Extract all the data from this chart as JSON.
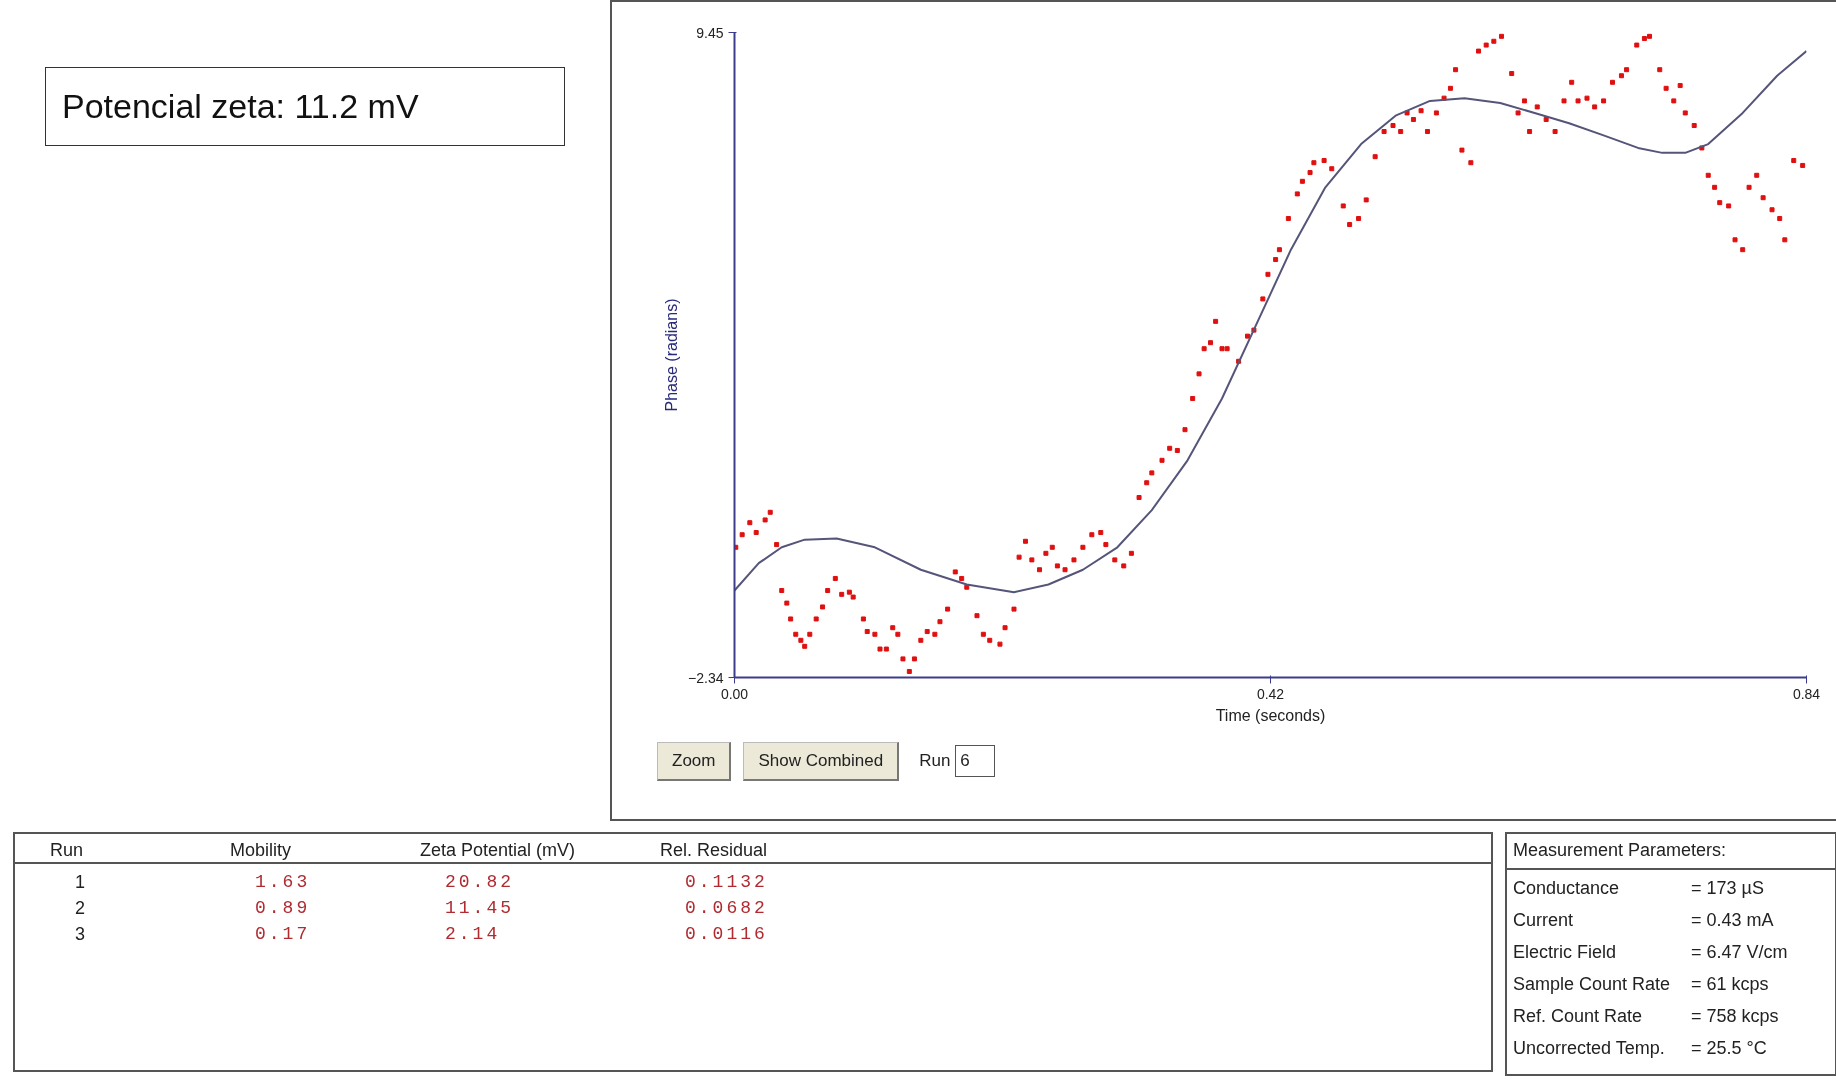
{
  "chart_data": {
    "type": "scatter",
    "xlabel": "Time (seconds)",
    "ylabel": "Phase (radians)",
    "xlim": [
      0,
      0.84
    ],
    "ylim": [
      -2.34,
      9.45
    ],
    "xticks": [
      {
        "value": 0,
        "label": "0.00"
      },
      0.42,
      0.84
    ],
    "yticks": [
      -2.34,
      9.45
    ],
    "grid": false,
    "series": [
      {
        "marker": "square",
        "color": "#e01010",
        "x": [
          0.001,
          0.006,
          0.012,
          0.017,
          0.024,
          0.028,
          0.033,
          0.037,
          0.041,
          0.044,
          0.048,
          0.052,
          0.055,
          0.059,
          0.064,
          0.069,
          0.073,
          0.079,
          0.084,
          0.09,
          0.093,
          0.101,
          0.104,
          0.11,
          0.114,
          0.119,
          0.124,
          0.128,
          0.132,
          0.137,
          0.141,
          0.146,
          0.151,
          0.157,
          0.161,
          0.167,
          0.173,
          0.178,
          0.182,
          0.19,
          0.195,
          0.2,
          0.208,
          0.212,
          0.219,
          0.223,
          0.228,
          0.233,
          0.239,
          0.244,
          0.249,
          0.253,
          0.259,
          0.266,
          0.273,
          0.28,
          0.287,
          0.291,
          0.298,
          0.305,
          0.311,
          0.317,
          0.323,
          0.327,
          0.335,
          0.341,
          0.347,
          0.353,
          0.359,
          0.364,
          0.368,
          0.373,
          0.377,
          0.382,
          0.386,
          0.395,
          0.402,
          0.407,
          0.414,
          0.418,
          0.424,
          0.427,
          0.434,
          0.441,
          0.445,
          0.451,
          0.454,
          0.462,
          0.468,
          0.477,
          0.482,
          0.489,
          0.495,
          0.502,
          0.509,
          0.516,
          0.522,
          0.527,
          0.532,
          0.538,
          0.543,
          0.55,
          0.556,
          0.561,
          0.565,
          0.57,
          0.577,
          0.583,
          0.589,
          0.595,
          0.601,
          0.609,
          0.614,
          0.619,
          0.623,
          0.629,
          0.636,
          0.643,
          0.65,
          0.656,
          0.661,
          0.668,
          0.674,
          0.681,
          0.688,
          0.695,
          0.699,
          0.707,
          0.713,
          0.717,
          0.725,
          0.73,
          0.736,
          0.741,
          0.745,
          0.752,
          0.758,
          0.763,
          0.768,
          0.772,
          0.779,
          0.784,
          0.79,
          0.795,
          0.801,
          0.806,
          0.813,
          0.819,
          0.823,
          0.83,
          0.837
        ],
        "values": [
          0.04,
          0.27,
          0.49,
          0.31,
          0.54,
          0.68,
          0.09,
          -0.75,
          -0.98,
          -1.27,
          -1.55,
          -1.66,
          -1.77,
          -1.55,
          -1.27,
          -1.05,
          -0.75,
          -0.53,
          -0.82,
          -0.78,
          -0.87,
          -1.27,
          -1.5,
          -1.55,
          -1.82,
          -1.82,
          -1.43,
          -1.55,
          -2.0,
          -2.23,
          -2.0,
          -1.66,
          -1.5,
          -1.55,
          -1.32,
          -1.09,
          -0.41,
          -0.53,
          -0.69,
          -1.21,
          -1.55,
          -1.66,
          -1.73,
          -1.43,
          -1.09,
          -0.14,
          0.15,
          -0.19,
          -0.37,
          -0.07,
          0.04,
          -0.3,
          -0.37,
          -0.19,
          0.04,
          0.27,
          0.31,
          0.09,
          -0.19,
          -0.3,
          -0.07,
          0.95,
          1.22,
          1.4,
          1.63,
          1.85,
          1.81,
          2.19,
          2.76,
          3.21,
          3.67,
          3.78,
          4.17,
          3.67,
          3.67,
          3.44,
          3.9,
          4.01,
          4.58,
          5.03,
          5.3,
          5.48,
          6.05,
          6.5,
          6.73,
          6.89,
          7.07,
          7.11,
          6.96,
          6.28,
          5.94,
          6.05,
          6.39,
          7.18,
          7.64,
          7.75,
          7.64,
          7.98,
          7.86,
          8.02,
          7.64,
          7.98,
          8.25,
          8.43,
          8.77,
          7.3,
          7.07,
          9.11,
          9.22,
          9.29,
          9.38,
          8.7,
          7.98,
          8.2,
          7.64,
          8.09,
          7.86,
          7.64,
          8.2,
          8.54,
          8.2,
          8.25,
          8.09,
          8.2,
          8.54,
          8.66,
          8.77,
          9.22,
          9.34,
          9.38,
          8.77,
          8.43,
          8.2,
          8.48,
          7.98,
          7.75,
          7.34,
          6.84,
          6.62,
          6.34,
          6.28,
          5.66,
          5.48,
          6.62,
          6.84,
          6.43,
          6.21,
          6.05,
          5.66,
          7.11,
          7.02
        ]
      },
      {
        "type": "line",
        "marker": "none",
        "line_style": "solid",
        "color": "#55557a",
        "x": [
          0,
          0.019,
          0.037,
          0.055,
          0.08,
          0.11,
          0.146,
          0.182,
          0.219,
          0.246,
          0.273,
          0.3,
          0.327,
          0.355,
          0.382,
          0.409,
          0.436,
          0.463,
          0.491,
          0.518,
          0.545,
          0.572,
          0.6,
          0.627,
          0.654,
          0.681,
          0.708,
          0.727,
          0.745,
          0.763,
          0.79,
          0.817,
          0.84
        ],
        "values": [
          -0.75,
          -0.25,
          0.04,
          0.18,
          0.2,
          0.04,
          -0.37,
          -0.64,
          -0.78,
          -0.64,
          -0.37,
          0.04,
          0.72,
          1.63,
          2.76,
          4.12,
          5.48,
          6.62,
          7.41,
          7.93,
          8.2,
          8.25,
          8.16,
          7.98,
          7.79,
          7.57,
          7.34,
          7.25,
          7.25,
          7.41,
          7.98,
          8.66,
          9.11
        ]
      }
    ],
    "annotations": [
      "Potencial zeta: 11.2 mV",
      "Zoom",
      "Show Combined",
      "Run",
      "6",
      "Run",
      "Mobility",
      "Zeta Potential (mV)",
      "Rel. Residual",
      "1",
      "1.63",
      "20.82",
      "0.1132",
      "2",
      "0.89",
      "11.45",
      "0.0682",
      "3",
      "0.17",
      "2.14",
      "0.0116",
      "Measurement Parameters:",
      "Conductance",
      "= 173 µS",
      "Current",
      "= 0.43 mA",
      "Electric Field",
      "= 6.47 V/cm",
      "Sample Count Rate",
      "= 61 kcps",
      "Ref. Count Rate",
      "= 758 kcps",
      "Uncorrected Temp.",
      "= 25.5 °C"
    ]
  }
}
